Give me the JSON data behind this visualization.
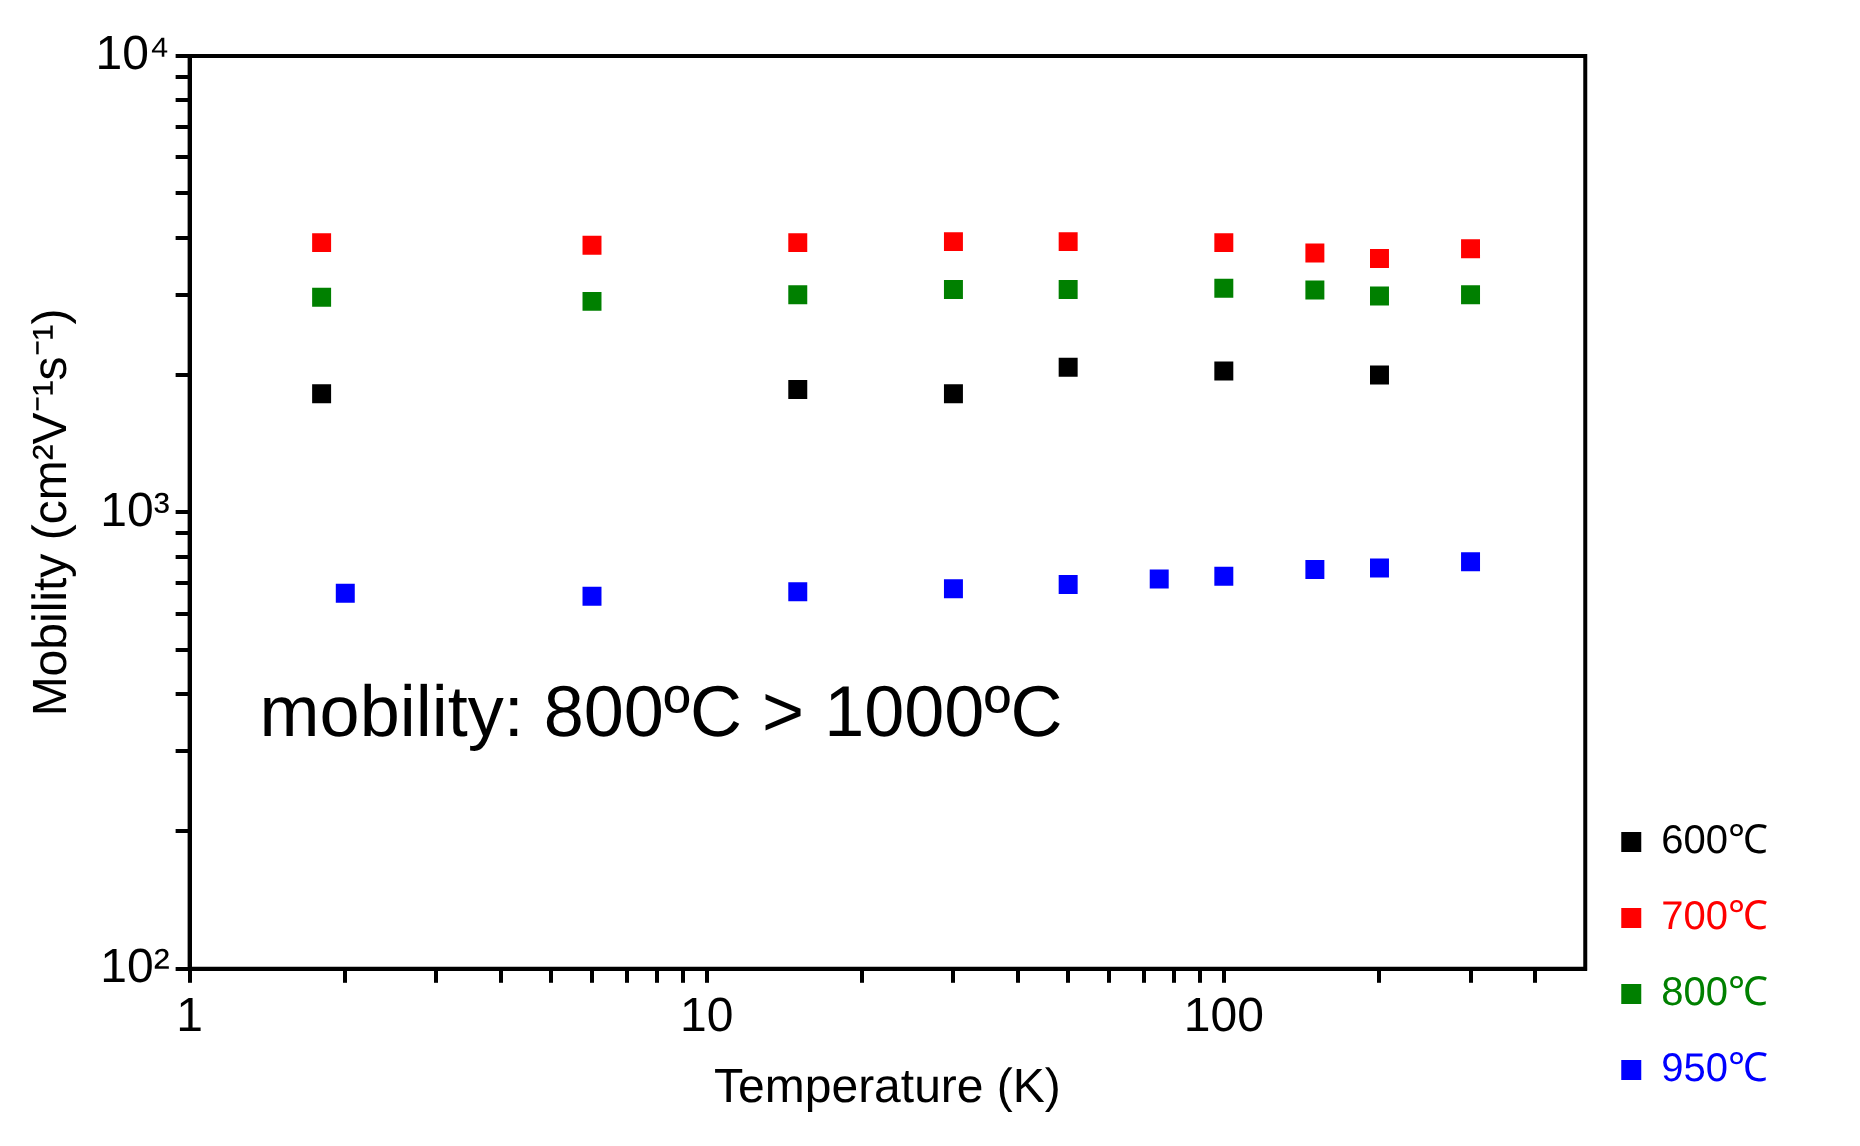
{
  "chart_data": {
    "type": "scatter",
    "xlabel": "Temperature (K)",
    "ylabel": "Mobility (cm²V⁻¹s⁻¹)",
    "log": "xy",
    "grid": false,
    "legend": "right",
    "marker": "square",
    "xlim": [
      1,
      500
    ],
    "ylim": [
      100,
      10000
    ],
    "xticks": [
      1,
      {
        "value": 2,
        "label": null
      },
      {
        "value": 3,
        "label": null
      },
      {
        "value": 4,
        "label": null
      },
      {
        "value": 5,
        "label": null
      },
      {
        "value": 6,
        "label": null
      },
      {
        "value": 7,
        "label": null
      },
      {
        "value": 8,
        "label": null
      },
      {
        "value": 9,
        "label": null
      },
      10,
      {
        "value": 20,
        "label": null
      },
      {
        "value": 30,
        "label": null
      },
      {
        "value": 40,
        "label": null
      },
      {
        "value": 50,
        "label": null
      },
      {
        "value": 60,
        "label": null
      },
      {
        "value": 70,
        "label": null
      },
      {
        "value": 80,
        "label": null
      },
      {
        "value": 90,
        "label": null
      },
      100,
      {
        "value": 200,
        "label": null
      },
      {
        "value": 300,
        "label": null
      },
      {
        "value": 400,
        "label": null
      }
    ],
    "yticks": [
      {
        "value": 100,
        "label": "10²"
      },
      {
        "value": 200,
        "label": null
      },
      {
        "value": 300,
        "label": null
      },
      {
        "value": 400,
        "label": null
      },
      {
        "value": 500,
        "label": null
      },
      {
        "value": 600,
        "label": null
      },
      {
        "value": 700,
        "label": null
      },
      {
        "value": 800,
        "label": null
      },
      {
        "value": 900,
        "label": null
      },
      {
        "value": 1000,
        "label": "10³"
      },
      {
        "value": 2000,
        "label": null
      },
      {
        "value": 3000,
        "label": null
      },
      {
        "value": 4000,
        "label": null
      },
      {
        "value": 5000,
        "label": null
      },
      {
        "value": 6000,
        "label": null
      },
      {
        "value": 7000,
        "label": null
      },
      {
        "value": 8000,
        "label": null
      },
      {
        "value": 9000,
        "label": null
      },
      {
        "value": 10000,
        "label": "10⁴"
      }
    ],
    "annotations": [
      "mobility: 800ºC > 1000ºC"
    ],
    "series": [
      {
        "name": "600℃",
        "color": "#000000",
        "x": [
          1.8,
          15,
          30,
          50,
          100,
          200
        ],
        "values": [
          1820,
          1860,
          1820,
          2080,
          2040,
          2000
        ]
      },
      {
        "name": "700℃",
        "color": "#ff0000",
        "x": [
          1.8,
          6,
          15,
          30,
          50,
          100,
          150,
          200,
          300
        ],
        "values": [
          3900,
          3850,
          3900,
          3920,
          3920,
          3900,
          3700,
          3600,
          3780
        ]
      },
      {
        "name": "800℃",
        "color": "#008000",
        "x": [
          1.8,
          6,
          15,
          30,
          50,
          100,
          150,
          200,
          300
        ],
        "values": [
          2960,
          2900,
          3000,
          3080,
          3080,
          3100,
          3070,
          2980,
          3000
        ]
      },
      {
        "name": "950℃",
        "color": "#0000ff",
        "x": [
          2,
          6,
          15,
          30,
          50,
          75,
          100,
          150,
          200,
          300
        ],
        "values": [
          665,
          655,
          670,
          680,
          695,
          715,
          725,
          750,
          755,
          780
        ]
      }
    ]
  }
}
